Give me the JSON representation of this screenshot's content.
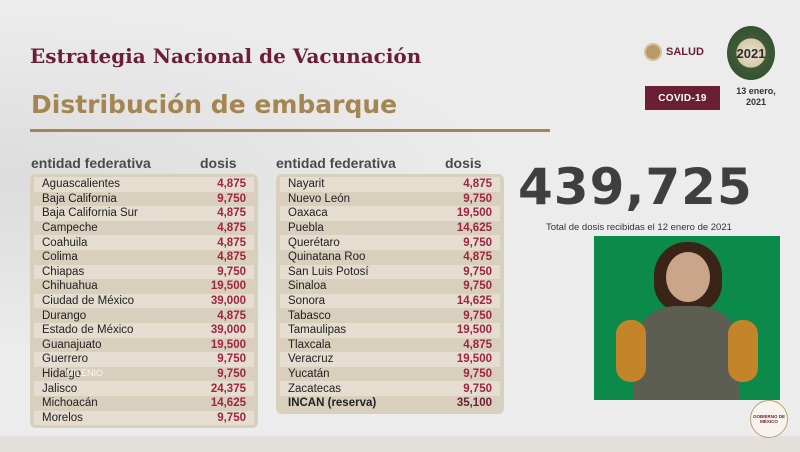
{
  "header": {
    "title": "Estrategia Nacional de Vacunación",
    "subtitle": "Distribución de embarque",
    "logo_text": "SALUD",
    "year_logo_text": "2021",
    "badge": "COVID-19",
    "date_line1": "13 enero,",
    "date_line2": "2021"
  },
  "columns": {
    "entity_label": "entidad federativa",
    "dose_label": "dosis"
  },
  "left_table": [
    {
      "name": "Aguascalientes",
      "dosis": "4,875"
    },
    {
      "name": "Baja California",
      "dosis": "9,750"
    },
    {
      "name": "Baja California Sur",
      "dosis": "4,875"
    },
    {
      "name": "Campeche",
      "dosis": "4,875"
    },
    {
      "name": "Coahuila",
      "dosis": "4,875"
    },
    {
      "name": "Colima",
      "dosis": "4,875"
    },
    {
      "name": "Chiapas",
      "dosis": "9,750"
    },
    {
      "name": "Chihuahua",
      "dosis": "19,500"
    },
    {
      "name": "Ciudad de México",
      "dosis": "39,000"
    },
    {
      "name": "Durango",
      "dosis": "4,875"
    },
    {
      "name": "Estado de México",
      "dosis": "39,000"
    },
    {
      "name": "Guanajuato",
      "dosis": "19,500"
    },
    {
      "name": "Guerrero",
      "dosis": "9,750"
    },
    {
      "name": "Hidalgo",
      "dosis": "9,750"
    },
    {
      "name": "Jalisco",
      "dosis": "24,375"
    },
    {
      "name": "Michoacán",
      "dosis": "14,625"
    },
    {
      "name": "Morelos",
      "dosis": "9,750"
    }
  ],
  "right_table": [
    {
      "name": "Nayarit",
      "dosis": "4,875"
    },
    {
      "name": "Nuevo León",
      "dosis": "9,750"
    },
    {
      "name": "Oaxaca",
      "dosis": "19,500"
    },
    {
      "name": "Puebla",
      "dosis": "14,625"
    },
    {
      "name": "Querétaro",
      "dosis": "9,750"
    },
    {
      "name": "Quinatana Roo",
      "dosis": "4,875"
    },
    {
      "name": "San Luis Potosí",
      "dosis": "9,750"
    },
    {
      "name": "Sinaloa",
      "dosis": "9,750"
    },
    {
      "name": "Sonora",
      "dosis": "14,625"
    },
    {
      "name": "Tabasco",
      "dosis": "9,750"
    },
    {
      "name": "Tamaulipas",
      "dosis": "19,500"
    },
    {
      "name": "Tlaxcala",
      "dosis": "4,875"
    },
    {
      "name": "Veracruz",
      "dosis": "19,500"
    },
    {
      "name": "Yucatán",
      "dosis": "9,750"
    },
    {
      "name": "Zacatecas",
      "dosis": "9,750"
    },
    {
      "name": "INCAN (reserva)",
      "dosis": "35,100",
      "bold": true
    }
  ],
  "summary": {
    "total": "439,725",
    "caption": "Total de dosis recibidas el 12 enero de 2021"
  },
  "footer": {
    "gob_logo_line1": "GOBIERNO DE",
    "gob_logo_line2": "MÉXICO",
    "watermark": "MILENIO"
  },
  "colors": {
    "guinda": "#6b1f35",
    "gold": "#a48653",
    "dose_value": "#a0243f",
    "video_bg": "#0b8a4a"
  }
}
